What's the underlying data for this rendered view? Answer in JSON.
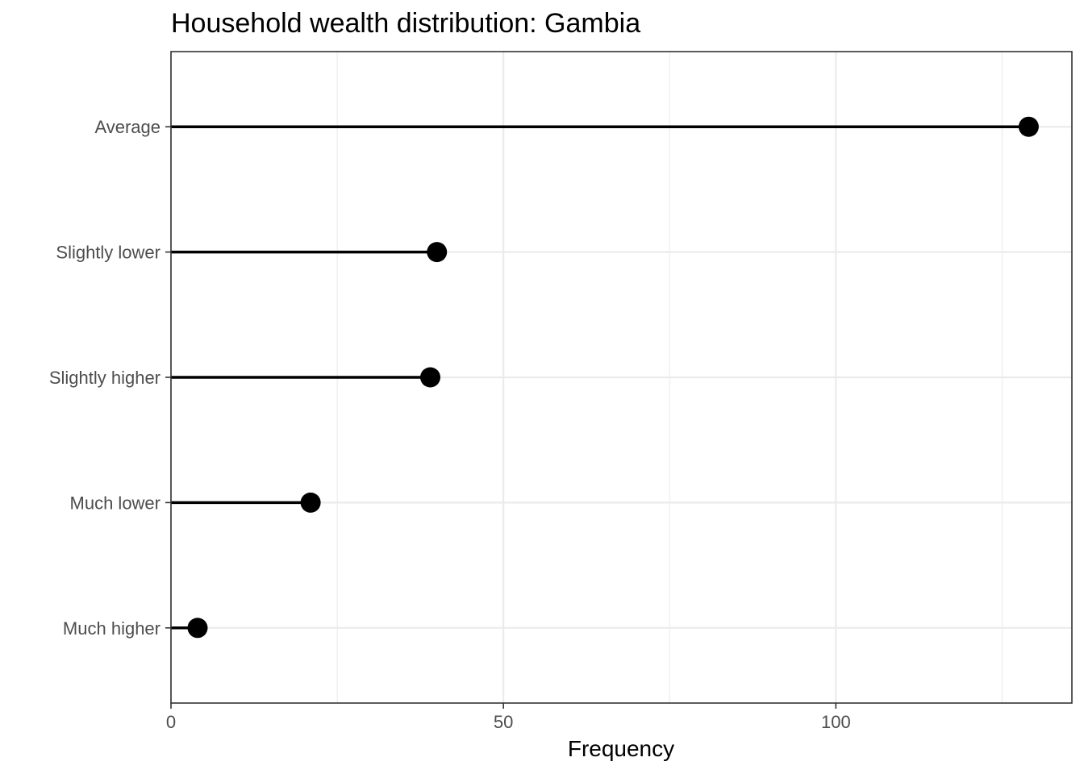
{
  "chart_data": {
    "type": "lollipop",
    "title": "Household wealth distribution: Gambia",
    "xlabel": "Frequency",
    "ylabel": "",
    "categories": [
      "Much higher",
      "Much lower",
      "Slightly higher",
      "Slightly lower",
      "Average"
    ],
    "values": [
      4,
      21,
      39,
      40,
      129
    ],
    "xlim": [
      0,
      135.5
    ],
    "x_ticks": [
      0,
      50,
      100
    ],
    "x_tick_labels": [
      "0",
      "50",
      "100"
    ],
    "grid": true,
    "legend": "none",
    "colors": {
      "marks": "#000000",
      "grid": "#ebebeb",
      "border": "#333333",
      "tick_text": "#4d4d4d"
    }
  }
}
